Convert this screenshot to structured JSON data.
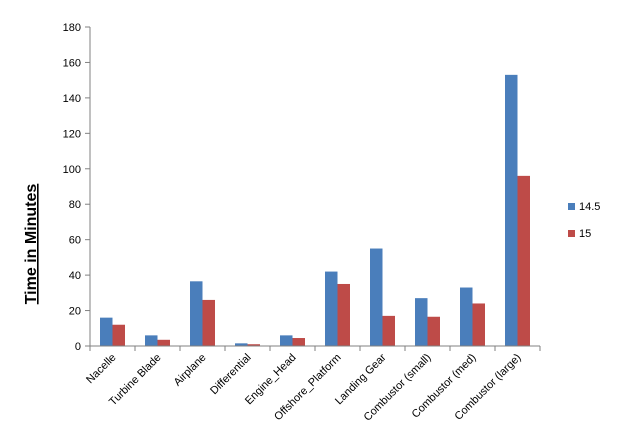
{
  "chart_data": {
    "type": "bar",
    "title": "",
    "xlabel": "",
    "ylabel": "Time in Minutes",
    "ylim": [
      0,
      180
    ],
    "yticks": [
      0,
      20,
      40,
      60,
      80,
      100,
      120,
      140,
      160,
      180
    ],
    "grid": false,
    "legend_position": "right",
    "categories": [
      "Nacelle",
      "Turbine Blade",
      "Airplane",
      "Differential",
      "Engine_Head",
      "Offshore_Platform",
      "Landing Gear",
      "Combustor (small)",
      "Combustor (med)",
      "Combustor (large)"
    ],
    "series": [
      {
        "name": "14.5",
        "color": "#4a7ebb",
        "values": [
          16,
          6,
          36.5,
          1.5,
          6,
          42,
          55,
          27,
          33,
          153
        ]
      },
      {
        "name": "15",
        "color": "#be4b48",
        "values": [
          12,
          3.5,
          26,
          1,
          4.5,
          35,
          17,
          16.5,
          24,
          96
        ]
      }
    ]
  }
}
